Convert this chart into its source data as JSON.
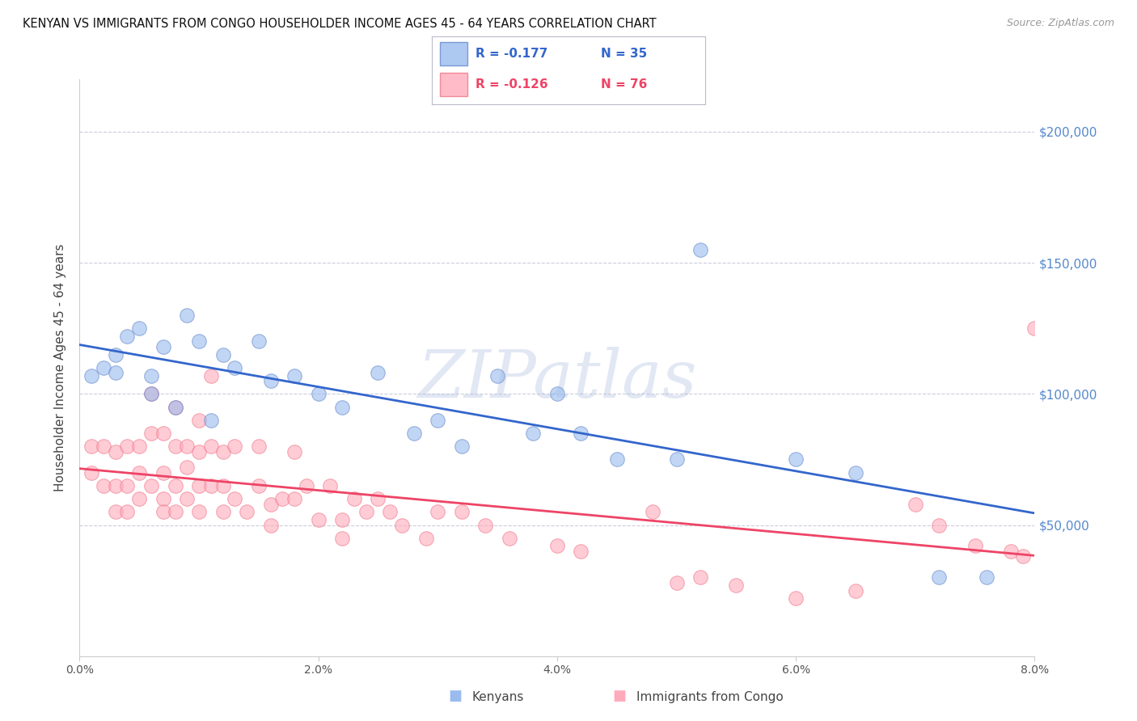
{
  "title": "KENYAN VS IMMIGRANTS FROM CONGO HOUSEHOLDER INCOME AGES 45 - 64 YEARS CORRELATION CHART",
  "source": "Source: ZipAtlas.com",
  "ylabel": "Householder Income Ages 45 - 64 years",
  "watermark": "ZIPatlas",
  "xlim": [
    0.0,
    0.08
  ],
  "ylim": [
    0,
    220000
  ],
  "xtick_vals": [
    0.0,
    0.02,
    0.04,
    0.06,
    0.08
  ],
  "xtick_labels": [
    "0.0%",
    "2.0%",
    "4.0%",
    "6.0%",
    "8.0%"
  ],
  "ytick_vals": [
    0,
    50000,
    100000,
    150000,
    200000
  ],
  "ytick_labels_right": [
    "",
    "$50,000",
    "$100,000",
    "$150,000",
    "$200,000"
  ],
  "blue_scatter_color": "#99BBEE",
  "blue_edge_color": "#6688CC",
  "pink_scatter_color": "#FFAABB",
  "pink_edge_color": "#EE7788",
  "blue_line_color": "#3366CC",
  "pink_line_color": "#EE4466",
  "grid_color": "#CCCCDD",
  "bg_color": "#FFFFFF",
  "right_label_color": "#5588CC",
  "legend_R_blue": "R = -0.177",
  "legend_N_blue": "N = 35",
  "legend_R_pink": "R = -0.126",
  "legend_N_pink": "N = 76",
  "legend_label_blue": "Kenyans",
  "legend_label_pink": "Immigrants from Congo",
  "blue_x": [
    0.001,
    0.002,
    0.003,
    0.003,
    0.004,
    0.005,
    0.006,
    0.006,
    0.007,
    0.008,
    0.009,
    0.01,
    0.011,
    0.012,
    0.013,
    0.015,
    0.016,
    0.018,
    0.02,
    0.022,
    0.025,
    0.028,
    0.03,
    0.032,
    0.035,
    0.038,
    0.04,
    0.042,
    0.045,
    0.05,
    0.052,
    0.06,
    0.065,
    0.072,
    0.076
  ],
  "blue_y": [
    107000,
    110000,
    115000,
    108000,
    122000,
    125000,
    107000,
    100000,
    118000,
    95000,
    130000,
    120000,
    90000,
    115000,
    110000,
    120000,
    105000,
    107000,
    100000,
    95000,
    108000,
    85000,
    90000,
    80000,
    107000,
    85000,
    100000,
    85000,
    75000,
    75000,
    155000,
    75000,
    70000,
    30000,
    30000
  ],
  "pink_x": [
    0.001,
    0.001,
    0.002,
    0.002,
    0.003,
    0.003,
    0.003,
    0.004,
    0.004,
    0.004,
    0.005,
    0.005,
    0.005,
    0.006,
    0.006,
    0.006,
    0.007,
    0.007,
    0.007,
    0.007,
    0.008,
    0.008,
    0.008,
    0.008,
    0.009,
    0.009,
    0.009,
    0.01,
    0.01,
    0.01,
    0.01,
    0.011,
    0.011,
    0.011,
    0.012,
    0.012,
    0.012,
    0.013,
    0.013,
    0.014,
    0.015,
    0.015,
    0.016,
    0.016,
    0.017,
    0.018,
    0.018,
    0.019,
    0.02,
    0.021,
    0.022,
    0.022,
    0.023,
    0.024,
    0.025,
    0.026,
    0.027,
    0.029,
    0.03,
    0.032,
    0.034,
    0.036,
    0.04,
    0.042,
    0.048,
    0.05,
    0.052,
    0.055,
    0.06,
    0.065,
    0.07,
    0.072,
    0.075,
    0.078,
    0.079,
    0.08
  ],
  "pink_y": [
    80000,
    70000,
    80000,
    65000,
    78000,
    65000,
    55000,
    80000,
    65000,
    55000,
    80000,
    70000,
    60000,
    100000,
    85000,
    65000,
    85000,
    70000,
    60000,
    55000,
    95000,
    80000,
    65000,
    55000,
    80000,
    72000,
    60000,
    90000,
    78000,
    65000,
    55000,
    107000,
    80000,
    65000,
    78000,
    65000,
    55000,
    80000,
    60000,
    55000,
    80000,
    65000,
    58000,
    50000,
    60000,
    78000,
    60000,
    65000,
    52000,
    65000,
    52000,
    45000,
    60000,
    55000,
    60000,
    55000,
    50000,
    45000,
    55000,
    55000,
    50000,
    45000,
    42000,
    40000,
    55000,
    28000,
    30000,
    27000,
    22000,
    25000,
    58000,
    50000,
    42000,
    40000,
    38000,
    125000
  ]
}
